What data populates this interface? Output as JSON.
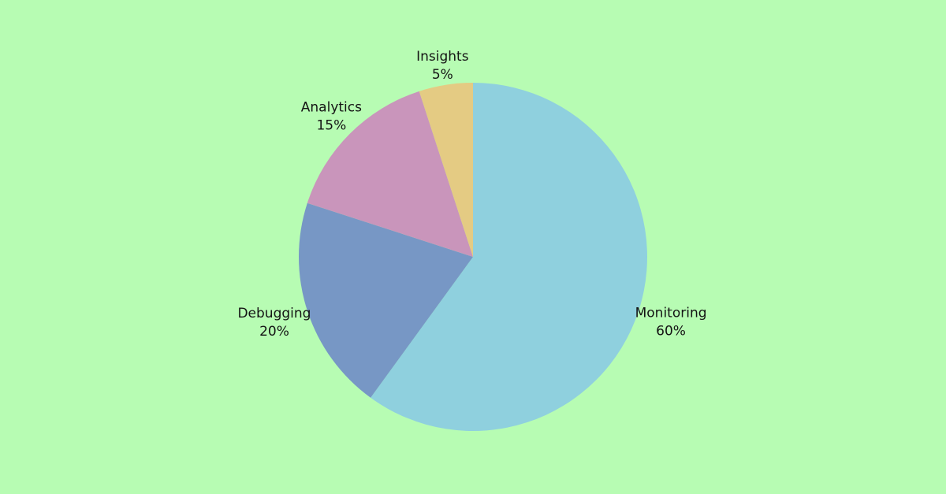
{
  "chart_data": {
    "type": "pie",
    "title": "",
    "start_angle_deg": 0,
    "direction": "clockwise",
    "legend": "none",
    "slices": [
      {
        "name": "Monitoring",
        "value": 60,
        "label": "60%",
        "color": "#8fd0de"
      },
      {
        "name": "Debugging",
        "value": 20,
        "label": "20%",
        "color": "#7797c5"
      },
      {
        "name": "Analytics",
        "value": 15,
        "label": "15%",
        "color": "#c995bb"
      },
      {
        "name": "Insights",
        "value": 5,
        "label": "5%",
        "color": "#e4cb83"
      }
    ]
  },
  "background_color": "#b7fcb3"
}
